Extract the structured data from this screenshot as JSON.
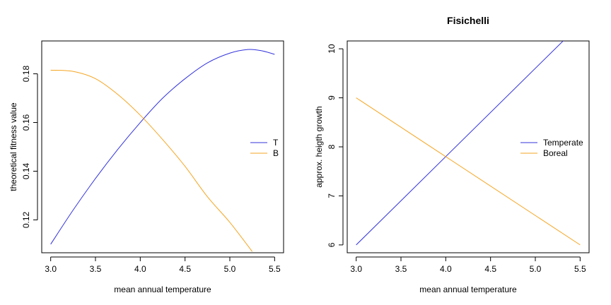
{
  "chart_data": [
    {
      "type": "line",
      "title": "",
      "xlabel": "mean annual temperature",
      "ylabel": "theoretical fitness value",
      "xlim": [
        2.9,
        5.6
      ],
      "ylim": [
        0.1065,
        0.1935
      ],
      "xticks": [
        3.0,
        3.5,
        4.0,
        4.5,
        5.0,
        5.5
      ],
      "yticks": [
        0.12,
        0.14,
        0.16,
        0.18
      ],
      "xtick_labels": [
        "3.0",
        "3.5",
        "4.0",
        "4.5",
        "5.0",
        "5.5"
      ],
      "ytick_labels": [
        "0.12",
        "0.14",
        "0.16",
        "0.18"
      ],
      "legend_position": "right",
      "legend": [
        {
          "label": "T",
          "color": "#3333dd"
        },
        {
          "label": "B",
          "color": "#f5a623"
        }
      ],
      "series": [
        {
          "name": "T",
          "color": "#3333dd",
          "x": [
            3.0,
            3.25,
            3.5,
            3.75,
            4.0,
            4.25,
            4.5,
            4.75,
            5.0,
            5.2,
            5.35,
            5.5
          ],
          "y": [
            0.11,
            0.124,
            0.137,
            0.149,
            0.16,
            0.17,
            0.178,
            0.1845,
            0.1885,
            0.19,
            0.1895,
            0.188
          ]
        },
        {
          "name": "B",
          "color": "#f5a623",
          "x": [
            3.0,
            3.25,
            3.5,
            3.75,
            4.0,
            4.25,
            4.5,
            4.75,
            5.0,
            5.25
          ],
          "y": [
            0.1815,
            0.181,
            0.178,
            0.1715,
            0.163,
            0.153,
            0.142,
            0.1295,
            0.119,
            0.107
          ]
        }
      ]
    },
    {
      "type": "line",
      "title": "Fisichelli",
      "xlabel": "mean annual temperature",
      "ylabel": "approx. heigth growth",
      "xlim": [
        2.9,
        5.6
      ],
      "ylim": [
        5.84,
        10.16
      ],
      "xticks": [
        3.0,
        3.5,
        4.0,
        4.5,
        5.0,
        5.5
      ],
      "yticks": [
        6,
        7,
        8,
        9,
        10
      ],
      "xtick_labels": [
        "3.0",
        "3.5",
        "4.0",
        "4.5",
        "5.0",
        "5.5"
      ],
      "ytick_labels": [
        "6",
        "7",
        "8",
        "9",
        "10"
      ],
      "legend_position": "right",
      "legend": [
        {
          "label": "Temperate",
          "color": "#3333dd"
        },
        {
          "label": "Boreal",
          "color": "#f5a623"
        }
      ],
      "series": [
        {
          "name": "Temperate",
          "color": "#3333dd",
          "x": [
            3.0,
            5.31
          ],
          "y": [
            6.0,
            10.16
          ]
        },
        {
          "name": "Boreal",
          "color": "#f5a623",
          "x": [
            3.0,
            5.5
          ],
          "y": [
            9.0,
            6.0
          ]
        }
      ]
    }
  ]
}
